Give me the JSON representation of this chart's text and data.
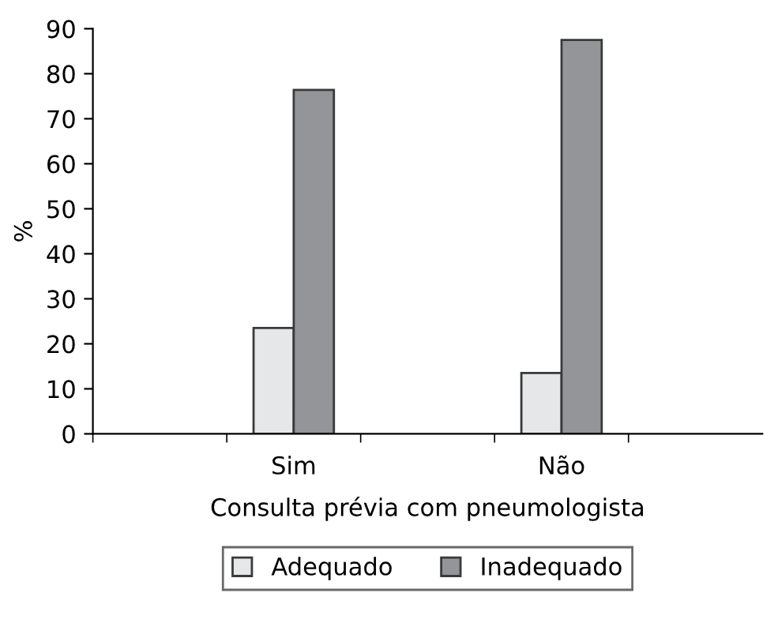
{
  "chart_data": {
    "type": "bar",
    "xlabel": "Consulta prévia com pneumologista",
    "ylabel": "%",
    "categories": [
      null,
      "Sim",
      null,
      "Não",
      null
    ],
    "series": [
      {
        "name": "Adequado",
        "color": "#e6e7e8",
        "values": [
          null,
          23.5,
          null,
          13.5,
          null
        ]
      },
      {
        "name": "Inadequado",
        "color": "#939598",
        "values": [
          null,
          76.4,
          null,
          87.5,
          null
        ]
      }
    ],
    "ylim": [
      0,
      90
    ],
    "yticks": [
      0,
      10,
      20,
      30,
      40,
      50,
      60,
      70,
      80,
      90
    ],
    "grid": false,
    "legend": "bottom"
  }
}
